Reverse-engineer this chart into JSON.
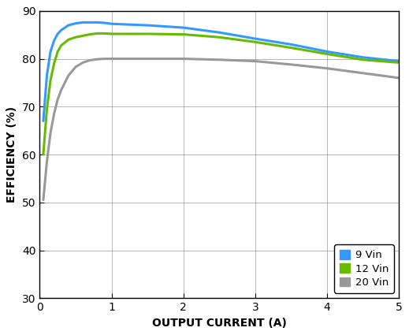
{
  "xlabel": "OUTPUT CURRENT (A)",
  "ylabel": "EFFICIENCY (%)",
  "xlim": [
    0,
    5
  ],
  "ylim": [
    30,
    90
  ],
  "yticks": [
    30,
    40,
    50,
    60,
    70,
    80,
    90
  ],
  "xticks": [
    0,
    1,
    2,
    3,
    4,
    5
  ],
  "series": [
    {
      "label": "9 Vin",
      "color": "#3399ff",
      "linewidth": 2.2,
      "x": [
        0.05,
        0.1,
        0.15,
        0.2,
        0.25,
        0.3,
        0.4,
        0.5,
        0.6,
        0.7,
        0.8,
        0.9,
        1.0,
        1.5,
        2.0,
        2.5,
        3.0,
        3.5,
        4.0,
        4.5,
        5.0
      ],
      "y": [
        67.0,
        76.5,
        81.5,
        83.8,
        85.2,
        86.0,
        87.0,
        87.4,
        87.6,
        87.6,
        87.6,
        87.5,
        87.3,
        87.0,
        86.5,
        85.5,
        84.2,
        83.0,
        81.5,
        80.3,
        79.5
      ]
    },
    {
      "label": "12 Vin",
      "color": "#66bb00",
      "linewidth": 2.2,
      "x": [
        0.05,
        0.1,
        0.15,
        0.2,
        0.25,
        0.3,
        0.4,
        0.5,
        0.6,
        0.7,
        0.8,
        0.9,
        1.0,
        1.5,
        2.0,
        2.5,
        3.0,
        3.5,
        4.0,
        4.5,
        5.0
      ],
      "y": [
        60.0,
        69.5,
        75.5,
        79.0,
        81.5,
        82.8,
        84.0,
        84.5,
        84.8,
        85.1,
        85.3,
        85.3,
        85.2,
        85.2,
        85.1,
        84.5,
        83.5,
        82.3,
        81.0,
        79.8,
        79.2
      ]
    },
    {
      "label": "20 Vin",
      "color": "#999999",
      "linewidth": 2.2,
      "x": [
        0.05,
        0.1,
        0.15,
        0.2,
        0.25,
        0.3,
        0.4,
        0.5,
        0.6,
        0.7,
        0.8,
        0.9,
        1.0,
        1.5,
        2.0,
        2.5,
        3.0,
        3.5,
        4.0,
        4.5,
        5.0
      ],
      "y": [
        50.5,
        58.5,
        64.5,
        68.5,
        71.5,
        73.5,
        76.5,
        78.3,
        79.2,
        79.7,
        79.9,
        80.0,
        80.0,
        80.0,
        80.0,
        79.8,
        79.5,
        78.8,
        78.0,
        77.0,
        76.0
      ]
    }
  ],
  "grid_color": "#888888",
  "background_color": "#ffffff",
  "legend_color_9": "#3399ff",
  "legend_color_12": "#66bb00",
  "legend_color_20": "#999999"
}
